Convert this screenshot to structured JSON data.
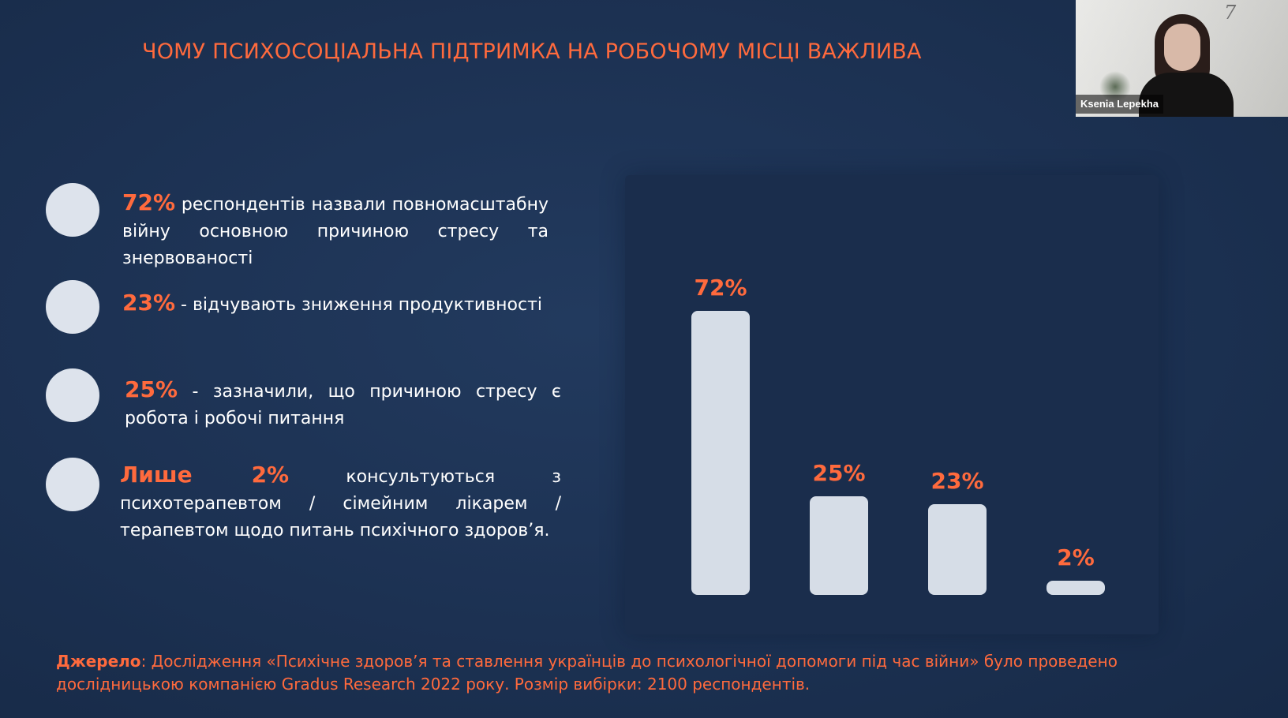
{
  "slide": {
    "title": "ЧОМУ ПСИХОСОЦІАЛЬНА  ПІДТРИМКА НА РОБОЧОМУ МІСЦІ ВАЖЛИВА",
    "bullets": [
      {
        "highlight": "72%",
        "text": " респондентів назвали повномасштабну війну основною причиною стресу та знервованості"
      },
      {
        "highlight": "23%",
        "text": " - відчувають зниження продуктивності"
      },
      {
        "highlight": "25%",
        "text": " - зазначили, що причиною стресу є робота і робочі питання"
      },
      {
        "highlight": "Лише 2%",
        "text": " консультуються з психотерапевтом / сімейним лікарем / терапевтом щодо питань психічного здоров’я."
      }
    ],
    "source_label": "Джерело",
    "source_text": ": Дослідження «Психічне здоров’я та ставлення українців до психологічної допомоги під час війни» було проведено дослідницькою компанією Gradus Research 2022 року. Розмір вибірки: 2100 респондентів."
  },
  "chart_data": {
    "type": "bar",
    "categories": [
      "",
      "",
      "",
      ""
    ],
    "values": [
      72,
      25,
      23,
      2
    ],
    "data_labels": [
      "72%",
      "25%",
      "23%",
      "2%"
    ],
    "ylim": [
      0,
      72
    ],
    "grid": false,
    "bar_color": "#d6dde7",
    "label_color": "#ff6a3d"
  },
  "video": {
    "participant_name": "Ksenia Lepekha",
    "wall_text": "7"
  },
  "colors": {
    "accent": "#ff6a3d",
    "background": "#1c3050",
    "circle": "#dde3ec"
  }
}
